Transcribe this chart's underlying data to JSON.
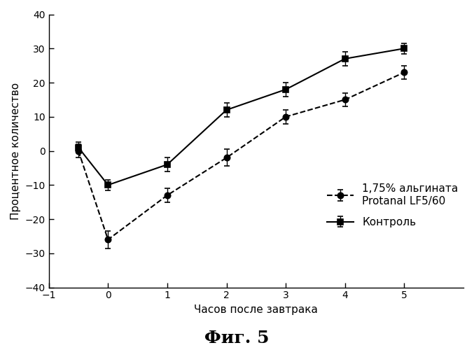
{
  "title": "Фиг. 5",
  "xlabel": "Часов после завтрака",
  "ylabel": "Процентное количество",
  "xlim": [
    -1,
    6
  ],
  "ylim": [
    -40,
    40
  ],
  "xticks": [
    -1,
    0,
    1,
    2,
    3,
    4,
    5
  ],
  "yticks": [
    -40,
    -30,
    -20,
    -10,
    0,
    10,
    20,
    30,
    40
  ],
  "series1": {
    "label": "1,75% альгината\nProtanal LF5/60",
    "x": [
      -0.5,
      0,
      1,
      2,
      3,
      4,
      5
    ],
    "y": [
      0,
      -26,
      -13,
      -2,
      10,
      15,
      23
    ],
    "yerr": [
      2,
      2.5,
      2,
      2.5,
      2,
      2,
      2
    ],
    "linestyle": "--",
    "marker": "o",
    "markersize": 6,
    "linewidth": 1.5
  },
  "series2": {
    "label": "Контроль",
    "x": [
      -0.5,
      0,
      1,
      2,
      3,
      4,
      5
    ],
    "y": [
      1,
      -10,
      -4,
      12,
      18,
      27,
      30
    ],
    "yerr": [
      1.5,
      1.5,
      2,
      2,
      2,
      2,
      1.5
    ],
    "linestyle": "-",
    "marker": "s",
    "markersize": 6,
    "linewidth": 1.5
  },
  "background_color": "#ffffff",
  "title_fontsize": 18,
  "label_fontsize": 11,
  "tick_fontsize": 10,
  "legend_fontsize": 11
}
